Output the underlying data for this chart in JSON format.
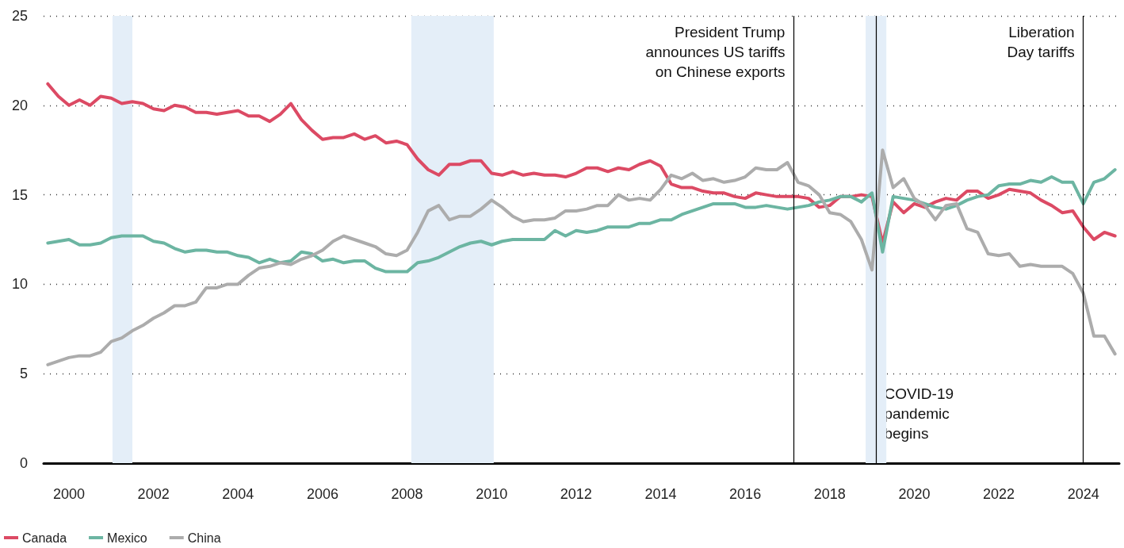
{
  "chart_data": {
    "type": "line",
    "xlim": [
      1999.4,
      2024.85
    ],
    "xticks": [
      2000,
      2002,
      2004,
      2006,
      2008,
      2010,
      2012,
      2014,
      2016,
      2018,
      2020,
      2022,
      2024
    ],
    "ylim": [
      0,
      25
    ],
    "yticks": [
      0,
      5,
      10,
      15,
      20,
      25
    ],
    "grid": "y",
    "legend": "bottom left",
    "marker": "none",
    "line_style": "solid",
    "x": [
      1999.5,
      1999.75,
      2000,
      2000.25,
      2000.5,
      2000.75,
      2001,
      2001.25,
      2001.5,
      2001.75,
      2002,
      2002.25,
      2002.5,
      2002.75,
      2003,
      2003.25,
      2003.5,
      2003.75,
      2004,
      2004.25,
      2004.5,
      2004.75,
      2005,
      2005.25,
      2005.5,
      2005.75,
      2006,
      2006.25,
      2006.5,
      2006.75,
      2007,
      2007.25,
      2007.5,
      2007.75,
      2008,
      2008.25,
      2008.5,
      2008.75,
      2009,
      2009.25,
      2009.5,
      2009.75,
      2010,
      2010.25,
      2010.5,
      2010.75,
      2011,
      2011.25,
      2011.5,
      2011.75,
      2012,
      2012.25,
      2012.5,
      2012.75,
      2013,
      2013.25,
      2013.5,
      2013.75,
      2014,
      2014.25,
      2014.5,
      2014.75,
      2015,
      2015.25,
      2015.5,
      2015.75,
      2016,
      2016.25,
      2016.5,
      2016.75,
      2017,
      2017.25,
      2017.5,
      2017.75,
      2018,
      2018.25,
      2018.5,
      2018.75,
      2019,
      2019.25,
      2019.5,
      2019.75,
      2020,
      2020.25,
      2020.5,
      2020.75,
      2021,
      2021.25,
      2021.5,
      2021.75,
      2022,
      2022.25,
      2022.5,
      2022.75,
      2023,
      2023.25,
      2023.5,
      2023.75,
      2024,
      2024.25,
      2024.5,
      2024.75
    ],
    "series": [
      {
        "name": "Canada",
        "color": "#dc4a64",
        "values": [
          21.2,
          20.5,
          20.0,
          20.3,
          20.0,
          20.5,
          20.4,
          20.1,
          20.2,
          20.1,
          19.8,
          19.7,
          20.0,
          19.9,
          19.6,
          19.6,
          19.5,
          19.6,
          19.7,
          19.4,
          19.4,
          19.1,
          19.5,
          20.1,
          19.2,
          18.6,
          18.1,
          18.2,
          18.2,
          18.4,
          18.1,
          18.3,
          17.9,
          18.0,
          17.8,
          17.0,
          16.4,
          16.1,
          16.7,
          16.7,
          16.9,
          16.9,
          16.2,
          16.1,
          16.3,
          16.1,
          16.2,
          16.1,
          16.1,
          16.0,
          16.2,
          16.5,
          16.5,
          16.3,
          16.5,
          16.4,
          16.7,
          16.9,
          16.6,
          15.6,
          15.4,
          15.4,
          15.2,
          15.1,
          15.1,
          14.9,
          14.8,
          15.1,
          15.0,
          14.9,
          14.9,
          14.9,
          14.8,
          14.3,
          14.4,
          14.9,
          14.9,
          15.0,
          14.9,
          12.3,
          14.6,
          14.0,
          14.5,
          14.3,
          14.6,
          14.8,
          14.7,
          15.2,
          15.2,
          14.8,
          15.0,
          15.3,
          15.2,
          15.1,
          14.7,
          14.4,
          14.0,
          14.1,
          13.2,
          12.5,
          12.9,
          12.7
        ]
      },
      {
        "name": "Mexico",
        "color": "#6cb5a2",
        "values": [
          12.3,
          12.4,
          12.5,
          12.2,
          12.2,
          12.3,
          12.6,
          12.7,
          12.7,
          12.7,
          12.4,
          12.3,
          12.0,
          11.8,
          11.9,
          11.9,
          11.8,
          11.8,
          11.6,
          11.5,
          11.2,
          11.4,
          11.2,
          11.3,
          11.8,
          11.7,
          11.3,
          11.4,
          11.2,
          11.3,
          11.3,
          10.9,
          10.7,
          10.7,
          10.7,
          11.2,
          11.3,
          11.5,
          11.8,
          12.1,
          12.3,
          12.4,
          12.2,
          12.4,
          12.5,
          12.5,
          12.5,
          12.5,
          13.0,
          12.7,
          13.0,
          12.9,
          13.0,
          13.2,
          13.2,
          13.2,
          13.4,
          13.4,
          13.6,
          13.6,
          13.9,
          14.1,
          14.3,
          14.5,
          14.5,
          14.5,
          14.3,
          14.3,
          14.4,
          14.3,
          14.2,
          14.3,
          14.4,
          14.6,
          14.7,
          14.9,
          14.9,
          14.6,
          15.1,
          11.8,
          14.9,
          14.8,
          14.7,
          14.5,
          14.3,
          14.2,
          14.4,
          14.7,
          14.9,
          15.0,
          15.5,
          15.6,
          15.6,
          15.8,
          15.7,
          16.0,
          15.7,
          15.7,
          14.5,
          15.7,
          15.9,
          16.4
        ]
      },
      {
        "name": "China",
        "color": "#acacac",
        "values": [
          5.5,
          5.7,
          5.9,
          6.0,
          6.0,
          6.2,
          6.8,
          7.0,
          7.4,
          7.7,
          8.1,
          8.4,
          8.8,
          8.8,
          9.0,
          9.8,
          9.8,
          10.0,
          10.0,
          10.5,
          10.9,
          11.0,
          11.2,
          11.1,
          11.4,
          11.6,
          11.9,
          12.4,
          12.7,
          12.5,
          12.3,
          12.1,
          11.7,
          11.6,
          11.9,
          12.9,
          14.1,
          14.4,
          13.6,
          13.8,
          13.8,
          14.2,
          14.7,
          14.3,
          13.8,
          13.5,
          13.6,
          13.6,
          13.7,
          14.1,
          14.1,
          14.2,
          14.4,
          14.4,
          15.0,
          14.7,
          14.8,
          14.7,
          15.3,
          16.1,
          15.9,
          16.2,
          15.8,
          15.9,
          15.7,
          15.8,
          16.0,
          16.5,
          16.4,
          16.4,
          16.8,
          15.7,
          15.5,
          15.0,
          14.0,
          13.9,
          13.5,
          12.5,
          10.8,
          17.5,
          15.4,
          15.9,
          14.8,
          14.4,
          13.6,
          14.4,
          14.5,
          13.1,
          12.9,
          11.7,
          11.6,
          11.7,
          11.0,
          11.1,
          11.0,
          11.0,
          11.0,
          10.6,
          9.5,
          7.1,
          7.1,
          6.1
        ]
      }
    ],
    "ref_lines": [
      {
        "axis": "x",
        "value": 2017.15,
        "label": "President Trump\nannounces US tariffs\non Chinese exports",
        "color": "#000000"
      },
      {
        "axis": "x",
        "value": 2019.1,
        "label": "COVID-19\npandemic\nbegins",
        "color": "#000000"
      },
      {
        "axis": "x",
        "value": 2024.0,
        "label": "Liberation\nDay tariffs",
        "color": "#000000"
      }
    ],
    "bands": [
      {
        "axis": "x",
        "from": 2001.03,
        "to": 2001.5,
        "color": "#e4eef8"
      },
      {
        "axis": "x",
        "from": 2008.1,
        "to": 2010.05,
        "color": "#e4eef8"
      },
      {
        "axis": "x",
        "from": 2018.85,
        "to": 2019.34,
        "color": "#e4eef8"
      }
    ]
  }
}
